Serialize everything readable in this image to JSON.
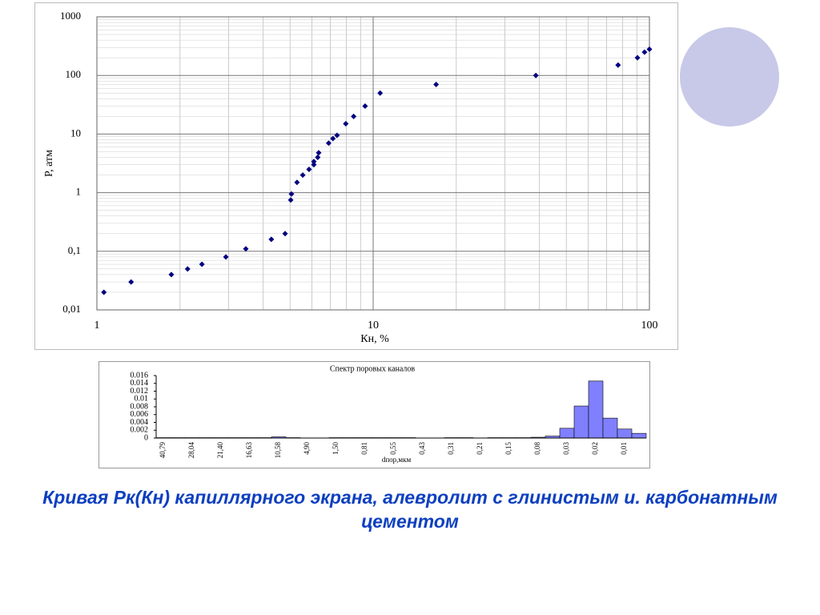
{
  "chart_data": [
    {
      "type": "scatter",
      "x_label": "Кн, %",
      "y_label": "P, атм",
      "log_x": true,
      "log_y": true,
      "grid": true,
      "color": "#000080",
      "x": [
        1.06,
        1.33,
        1.86,
        2.13,
        2.4,
        2.93,
        3.46,
        4.28,
        4.8,
        5.03,
        5.06,
        5.3,
        5.56,
        5.86,
        6.1,
        6.1,
        6.3,
        6.35,
        6.9,
        7.15,
        7.4,
        7.96,
        8.5,
        9.35,
        10.6,
        16.9,
        38.8,
        77,
        90.5,
        96,
        100
      ],
      "values": [
        0.02,
        0.03,
        0.04,
        0.05,
        0.06,
        0.08,
        0.11,
        0.16,
        0.2,
        0.75,
        0.95,
        1.5,
        2,
        2.5,
        3,
        3.4,
        4,
        4.8,
        7,
        8.4,
        9.5,
        15,
        20,
        30,
        50,
        70,
        100,
        150,
        200,
        250,
        280
      ],
      "xlim": [
        1,
        100
      ],
      "xticks": [
        1,
        10,
        100
      ],
      "ylim": [
        0.01,
        1000
      ],
      "yticks": [
        {
          "value": 0.01,
          "label": "0,01"
        },
        {
          "value": 0.1,
          "label": "0,1"
        },
        1,
        10,
        100,
        1000
      ]
    },
    {
      "type": "bar",
      "title": "Спектр поровых каналов",
      "x_label": "dпор,мкм",
      "color": "#8080ff",
      "categories": [
        "40,79",
        null,
        "28,04",
        null,
        "21,40",
        null,
        "16,63",
        null,
        "10,58",
        null,
        "4,90",
        null,
        "1,50",
        null,
        "0,81",
        null,
        "0,55",
        null,
        "0,43",
        null,
        "0,31",
        null,
        "0,21",
        null,
        "0,15",
        null,
        "0,08",
        null,
        "0,03",
        null,
        "0,02",
        null,
        "0,01",
        null
      ],
      "values": [
        0.0001,
        0.0001,
        0.0001,
        0.0001,
        0.0001,
        0.0001,
        0.0001,
        0.0001,
        0.0003,
        0.0001,
        0,
        0,
        0.0001,
        0.0001,
        0.0001,
        0.0001,
        0.0001,
        0.0001,
        0,
        0,
        0.0001,
        0.0001,
        0,
        0.0001,
        0.0001,
        0.0001,
        0.0002,
        0.0005,
        0.0025,
        0.0082,
        0.0146,
        0.0051,
        0.0023,
        0.0012
      ],
      "ylim": [
        0,
        0.016
      ],
      "yticks": [
        0,
        0.002,
        0.004,
        0.006,
        0.008,
        0.01,
        0.012,
        0.014,
        0.016
      ]
    }
  ],
  "caption": "Кривая Рк(Кн) капиллярного экрана, алевролит с глинистым и. карбонатным цементом"
}
